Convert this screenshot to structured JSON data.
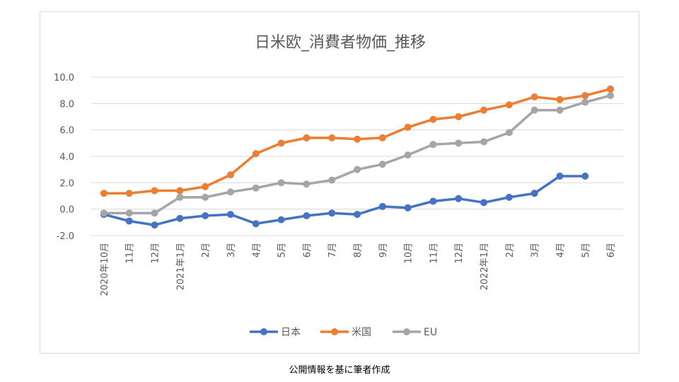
{
  "chart_data": {
    "type": "line",
    "title": "日米欧_消費者物価_推移",
    "xlabel": "",
    "ylabel": "",
    "ylim": [
      -2.0,
      10.0
    ],
    "yticks": [
      "-2.0",
      "0.0",
      "2.0",
      "4.0",
      "6.0",
      "8.0",
      "10.0"
    ],
    "categories": [
      "2020年10月",
      "11月",
      "12月",
      "2021年1月",
      "2月",
      "3月",
      "4月",
      "5月",
      "6月",
      "7月",
      "8月",
      "9月",
      "10月",
      "11月",
      "12月",
      "2022年1月",
      "2月",
      "3月",
      "4月",
      "5月",
      "6月"
    ],
    "grid": "horizontal",
    "legend": "bottom",
    "series": [
      {
        "name": "日本",
        "color": "#4472C4",
        "values": [
          -0.4,
          -0.9,
          -1.2,
          -0.7,
          -0.5,
          -0.4,
          -1.1,
          -0.8,
          -0.5,
          -0.3,
          -0.4,
          0.2,
          0.1,
          0.6,
          0.8,
          0.5,
          0.9,
          1.2,
          2.5,
          2.5,
          null
        ]
      },
      {
        "name": "米国",
        "color": "#ED7D31",
        "values": [
          1.2,
          1.2,
          1.4,
          1.4,
          1.7,
          2.6,
          4.2,
          5.0,
          5.4,
          5.4,
          5.3,
          5.4,
          6.2,
          6.8,
          7.0,
          7.5,
          7.9,
          8.5,
          8.3,
          8.6,
          9.1
        ]
      },
      {
        "name": "EU",
        "color": "#A5A5A5",
        "values": [
          -0.3,
          -0.3,
          -0.3,
          0.9,
          0.9,
          1.3,
          1.6,
          2.0,
          1.9,
          2.2,
          3.0,
          3.4,
          4.1,
          4.9,
          5.0,
          5.1,
          5.8,
          7.5,
          7.5,
          8.1,
          8.6
        ]
      }
    ]
  },
  "caption": "公開情報を基に筆者作成"
}
